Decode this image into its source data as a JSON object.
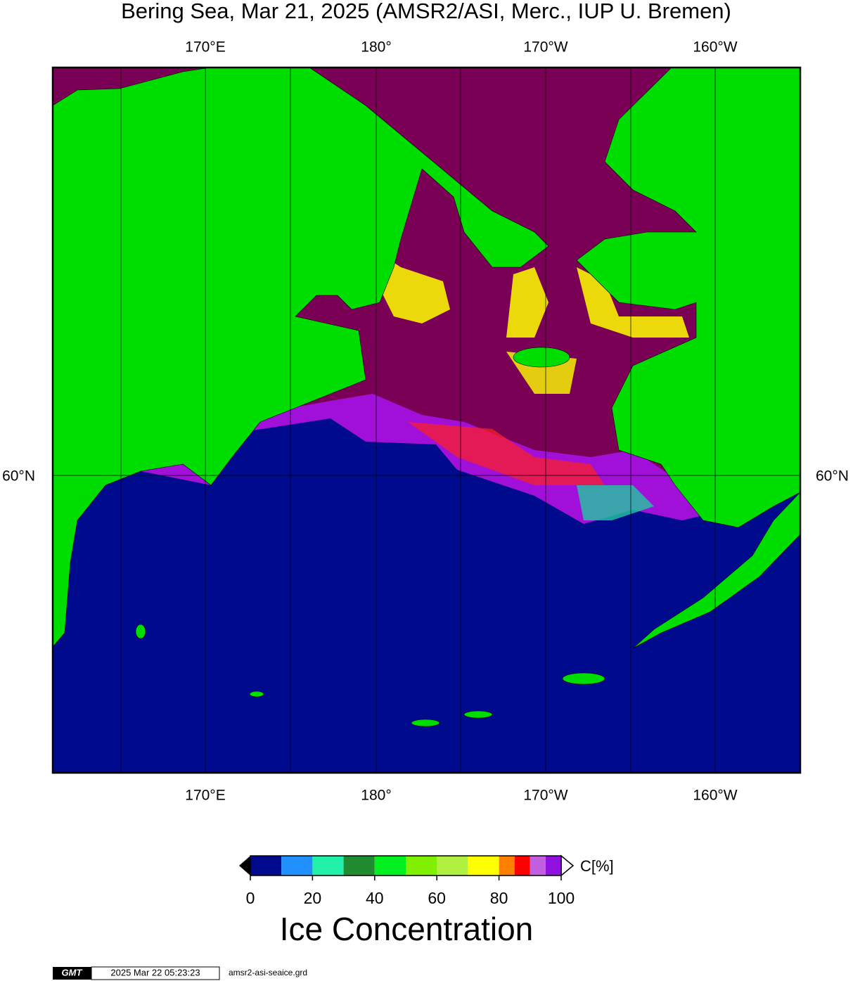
{
  "title": "Bering Sea, Mar 21, 2025 (AMSR2/ASI, Merc., IUP U. Bremen)",
  "map": {
    "top_labels": [
      "170°E",
      "180°",
      "170°W",
      "160°W"
    ],
    "bottom_labels": [
      "170°E",
      "180°",
      "170°W",
      "160°W"
    ],
    "left_labels": [
      "60°N"
    ],
    "right_labels": [
      "60°N"
    ]
  },
  "colorbar": {
    "bounds": [
      0,
      10,
      20,
      30,
      40,
      50,
      60,
      70,
      80,
      85,
      90,
      95,
      100
    ],
    "colors": [
      "#000a8c",
      "#2090ff",
      "#20f0a8",
      "#208c30",
      "#00f020",
      "#80f000",
      "#b0f040",
      "#ffff00",
      "#ff8000",
      "#ff0000",
      "#c060e0",
      "#9010e0"
    ],
    "ticks": [
      0,
      20,
      40,
      60,
      80,
      100
    ],
    "unit": "C[%]",
    "label": "Ice Concentration"
  },
  "footer": {
    "logo": "GMT",
    "timestamp": "2025 Mar 22 05:23:23",
    "file": "amsr2-asi-seaice.grd"
  }
}
